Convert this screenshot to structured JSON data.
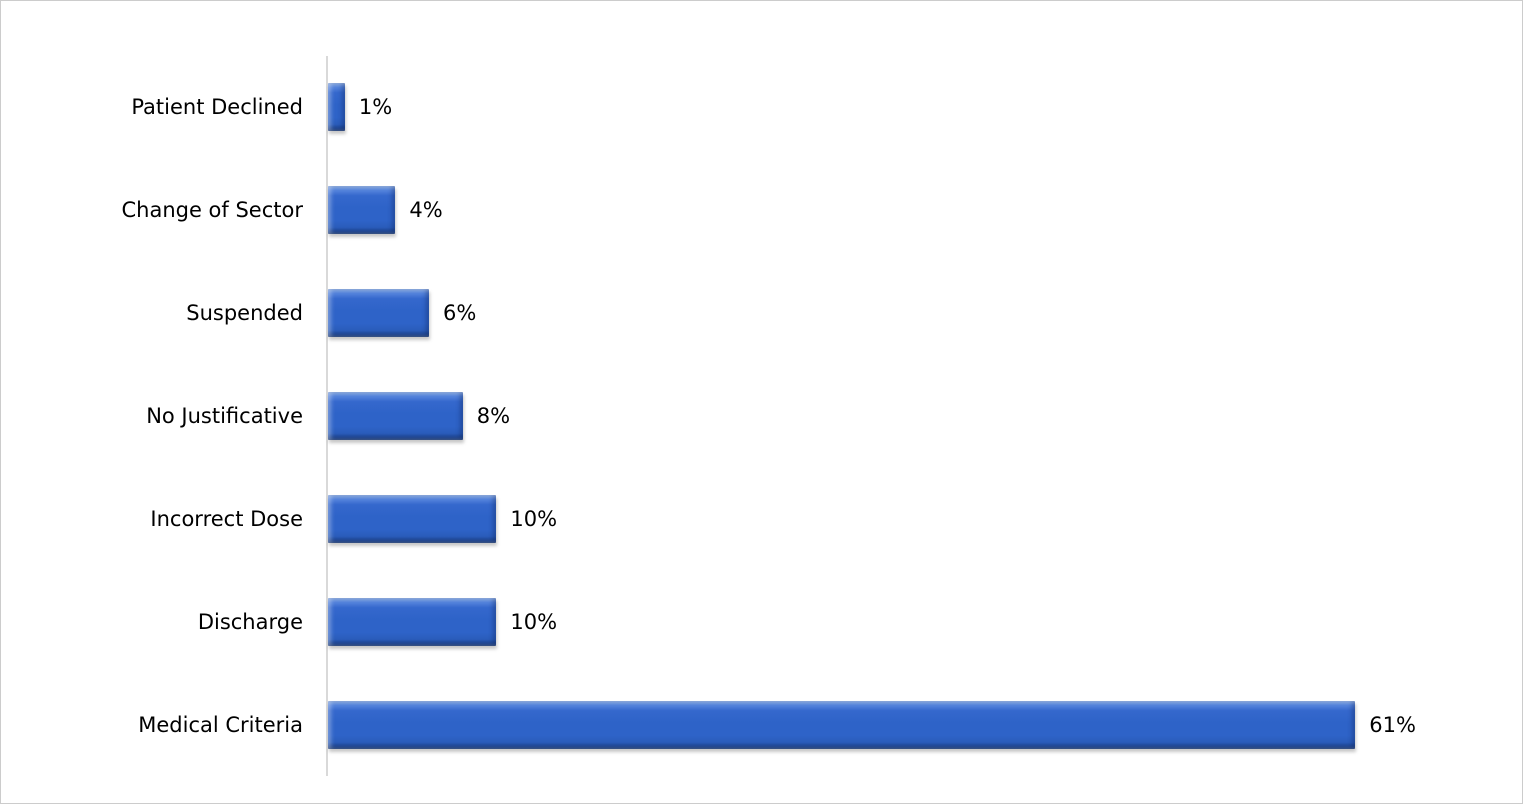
{
  "chart_data": {
    "type": "bar",
    "orientation": "horizontal",
    "title": "",
    "xlabel": "",
    "ylabel": "",
    "grid": false,
    "legend": false,
    "categories": [
      "Patient Declined",
      "Change of Sector",
      "Suspended",
      "No Justificative",
      "Incorrect Dose",
      "Discharge",
      "Medical Criteria"
    ],
    "values": [
      1,
      4,
      6,
      8,
      10,
      10,
      61
    ],
    "labels": [
      "1%",
      "4%",
      "6%",
      "8%",
      "10%",
      "10%",
      "61%"
    ],
    "xlim": [
      0,
      61
    ],
    "bar_color": "#2E63C8",
    "bar_highlight_color": "#8AAEEA",
    "bar_shadow_color": "#16366F",
    "axis_line_color": "#D9D9D9",
    "text_color": "#000000",
    "background_color": "#FFFFFF"
  }
}
